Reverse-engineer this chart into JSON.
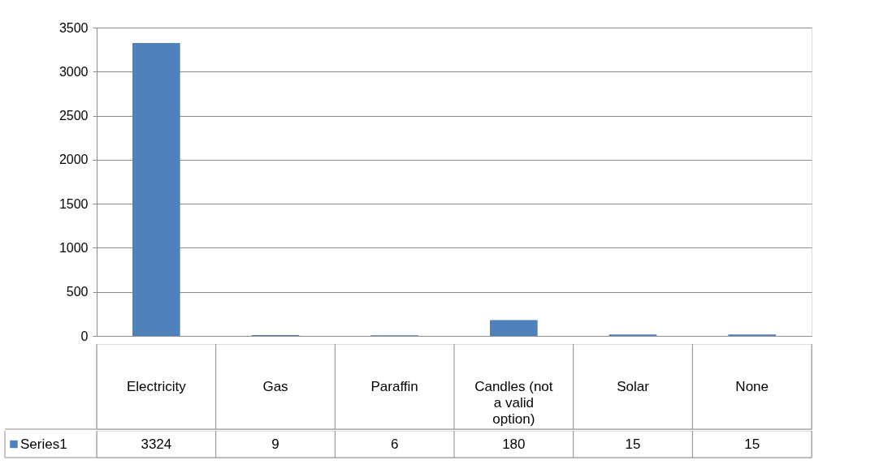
{
  "chart_data": {
    "type": "bar",
    "categories": [
      "Electricity",
      "Gas",
      "Paraffin",
      "Candles (not a valid option)",
      "Solar",
      "None"
    ],
    "series": [
      {
        "name": "Series1",
        "color": "#4f81bd",
        "values": [
          3324,
          9,
          6,
          180,
          15,
          15
        ]
      }
    ],
    "ylim": [
      0,
      3500
    ],
    "yticks": [
      0,
      500,
      1000,
      1500,
      2000,
      2500,
      3000,
      3500
    ],
    "grid": "y",
    "legend": "bottom",
    "data_labels": true
  }
}
